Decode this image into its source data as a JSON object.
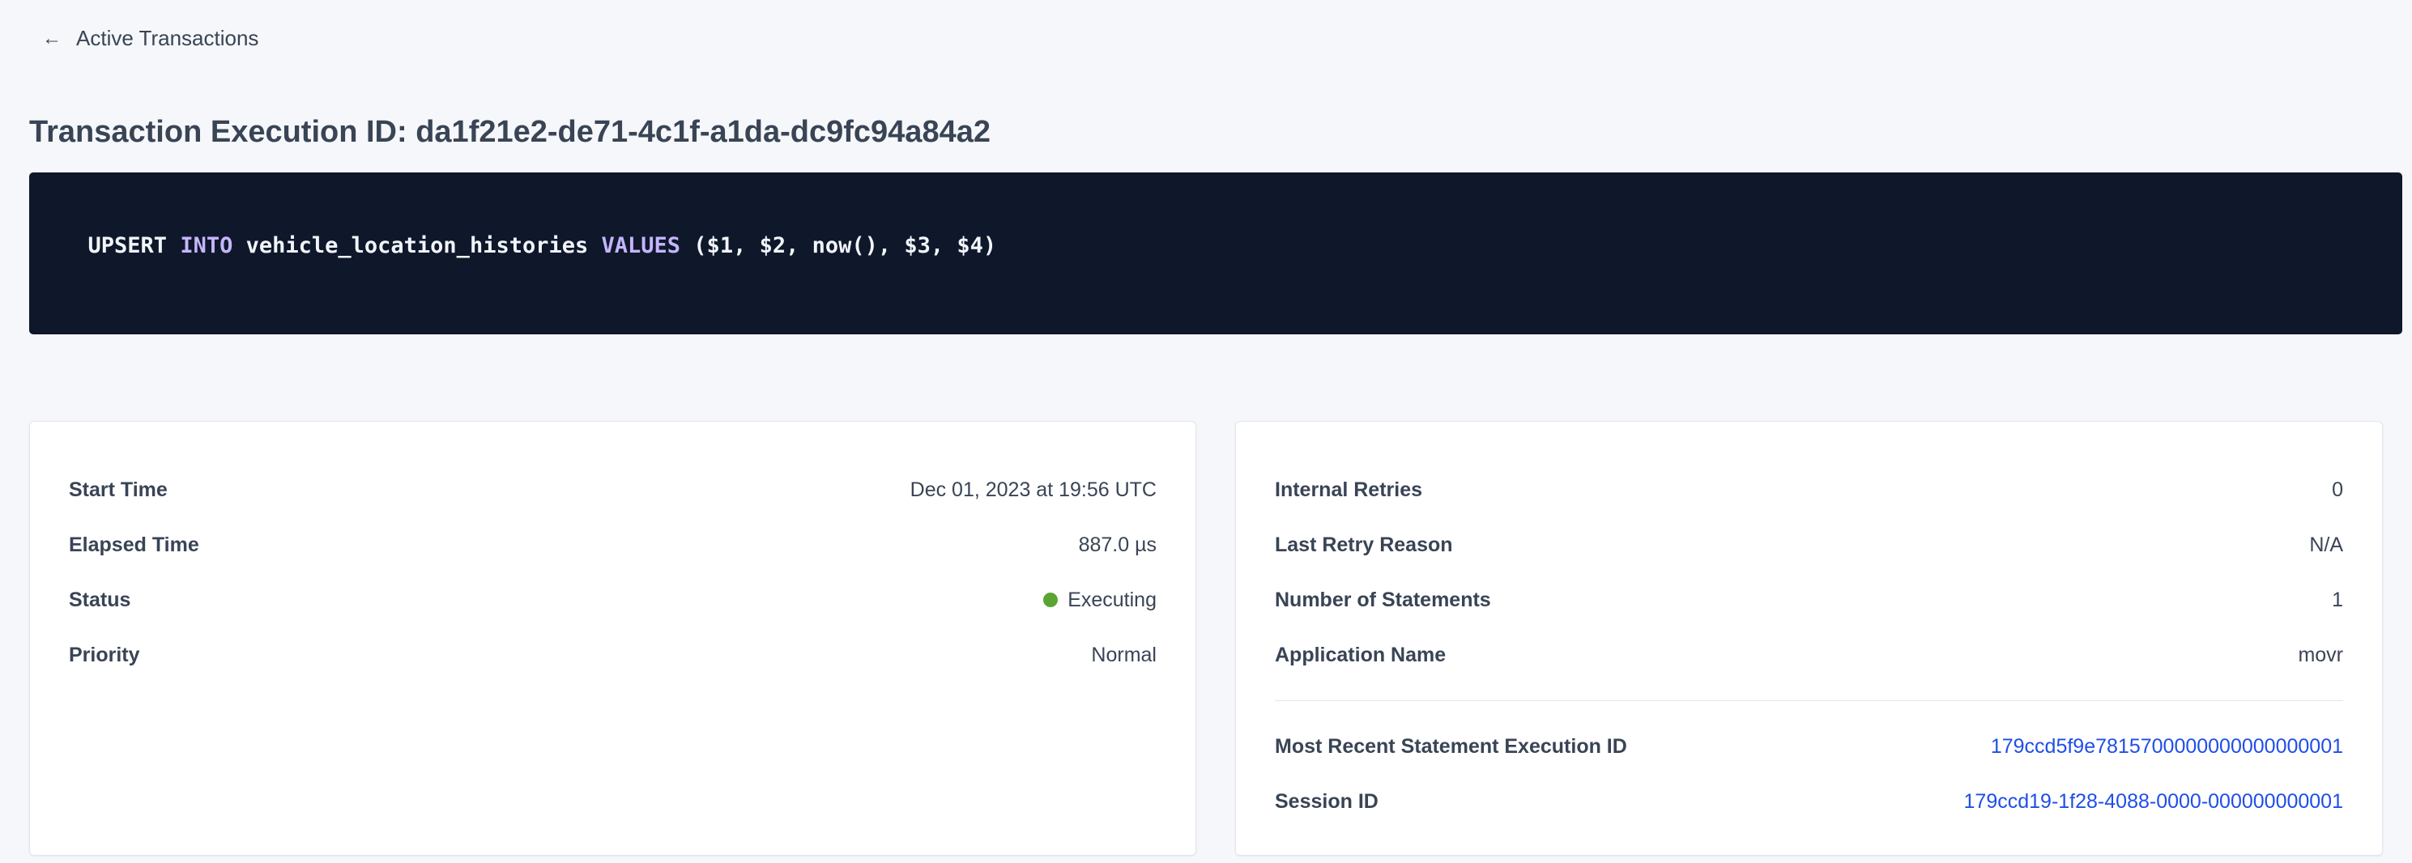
{
  "nav": {
    "back_label": "Active Transactions",
    "back_icon": "arrow-left-icon"
  },
  "page": {
    "title": "Transaction Execution ID: da1f21e2-de71-4c1f-a1da-dc9fc94a84a2"
  },
  "sql": {
    "tokens": [
      {
        "text": "UPSERT ",
        "kind": "plain"
      },
      {
        "text": "INTO",
        "kind": "keyword"
      },
      {
        "text": " vehicle_location_histories ",
        "kind": "plain"
      },
      {
        "text": "VALUES",
        "kind": "keyword"
      },
      {
        "text": " ($1, $2, now(), $3, $4)",
        "kind": "plain"
      }
    ],
    "keyword_color": "#c4b5fd",
    "background_color": "#0f172a"
  },
  "left_card": {
    "rows": [
      {
        "label": "Start Time",
        "value": "Dec 01, 2023 at 19:56 UTC"
      },
      {
        "label": "Elapsed Time",
        "value": "887.0 µs"
      },
      {
        "label": "Status",
        "value": "Executing",
        "status_color": "#5aa532"
      },
      {
        "label": "Priority",
        "value": "Normal"
      }
    ]
  },
  "right_card": {
    "rows": [
      {
        "label": "Internal Retries",
        "value": "0"
      },
      {
        "label": "Last Retry Reason",
        "value": "N/A"
      },
      {
        "label": "Number of Statements",
        "value": "1"
      },
      {
        "label": "Application Name",
        "value": "movr"
      }
    ],
    "links": [
      {
        "label": "Most Recent Statement Execution ID",
        "value": "179ccd5f9e7815700000000000000001"
      },
      {
        "label": "Session ID",
        "value": "179ccd19-1f28-4088-0000-000000000001"
      }
    ],
    "link_color": "#1f4ee8"
  }
}
